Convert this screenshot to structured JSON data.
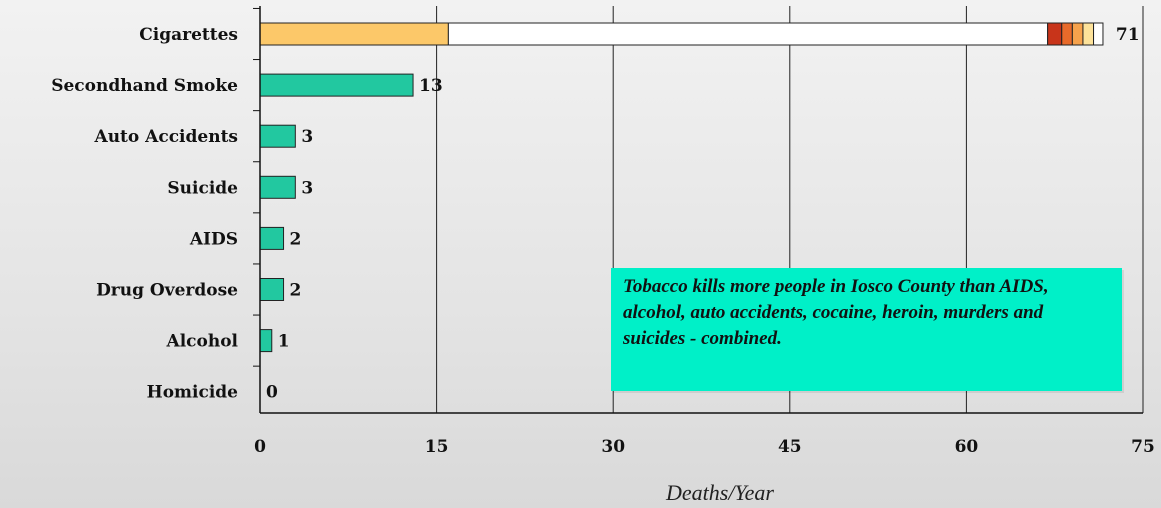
{
  "chart_data": {
    "type": "bar",
    "orientation": "horizontal",
    "categories": [
      "Cigarettes",
      "Secondhand Smoke",
      "Auto Accidents",
      "Suicide",
      "AIDS",
      "Drug Overdose",
      "Alcohol",
      "Homicide"
    ],
    "values": [
      71,
      13,
      3,
      3,
      2,
      2,
      1,
      0
    ],
    "value_labels": [
      "71",
      "13",
      "3",
      "3",
      "2",
      "2",
      "1",
      "0"
    ],
    "cigarette_segments": [
      {
        "value": 16,
        "color": "#fcc869"
      },
      {
        "value": 50.9,
        "color": "#ffffff"
      },
      {
        "value": 1.2,
        "color": "#c8341a"
      },
      {
        "value": 0.9,
        "color": "#e86a2a"
      },
      {
        "value": 0.9,
        "color": "#f6a24c"
      },
      {
        "value": 0.9,
        "color": "#fde29a"
      },
      {
        "value": 0.8,
        "color": "#ffffff"
      }
    ],
    "bar_color": "#22c8a0",
    "xlabel": "Deaths/Year",
    "xlim": [
      0,
      75
    ],
    "xticks": [
      0,
      15,
      30,
      45,
      60,
      75
    ],
    "xtick_labels": [
      "0",
      "15",
      "30",
      "45",
      "60",
      "75"
    ],
    "grid": true,
    "annotation": "Tobacco kills more people in Iosco County than AIDS, alcohol, auto accidents, cocaine, heroin, murders and suicides - combined.",
    "annotation_color": "#00f0c8"
  }
}
